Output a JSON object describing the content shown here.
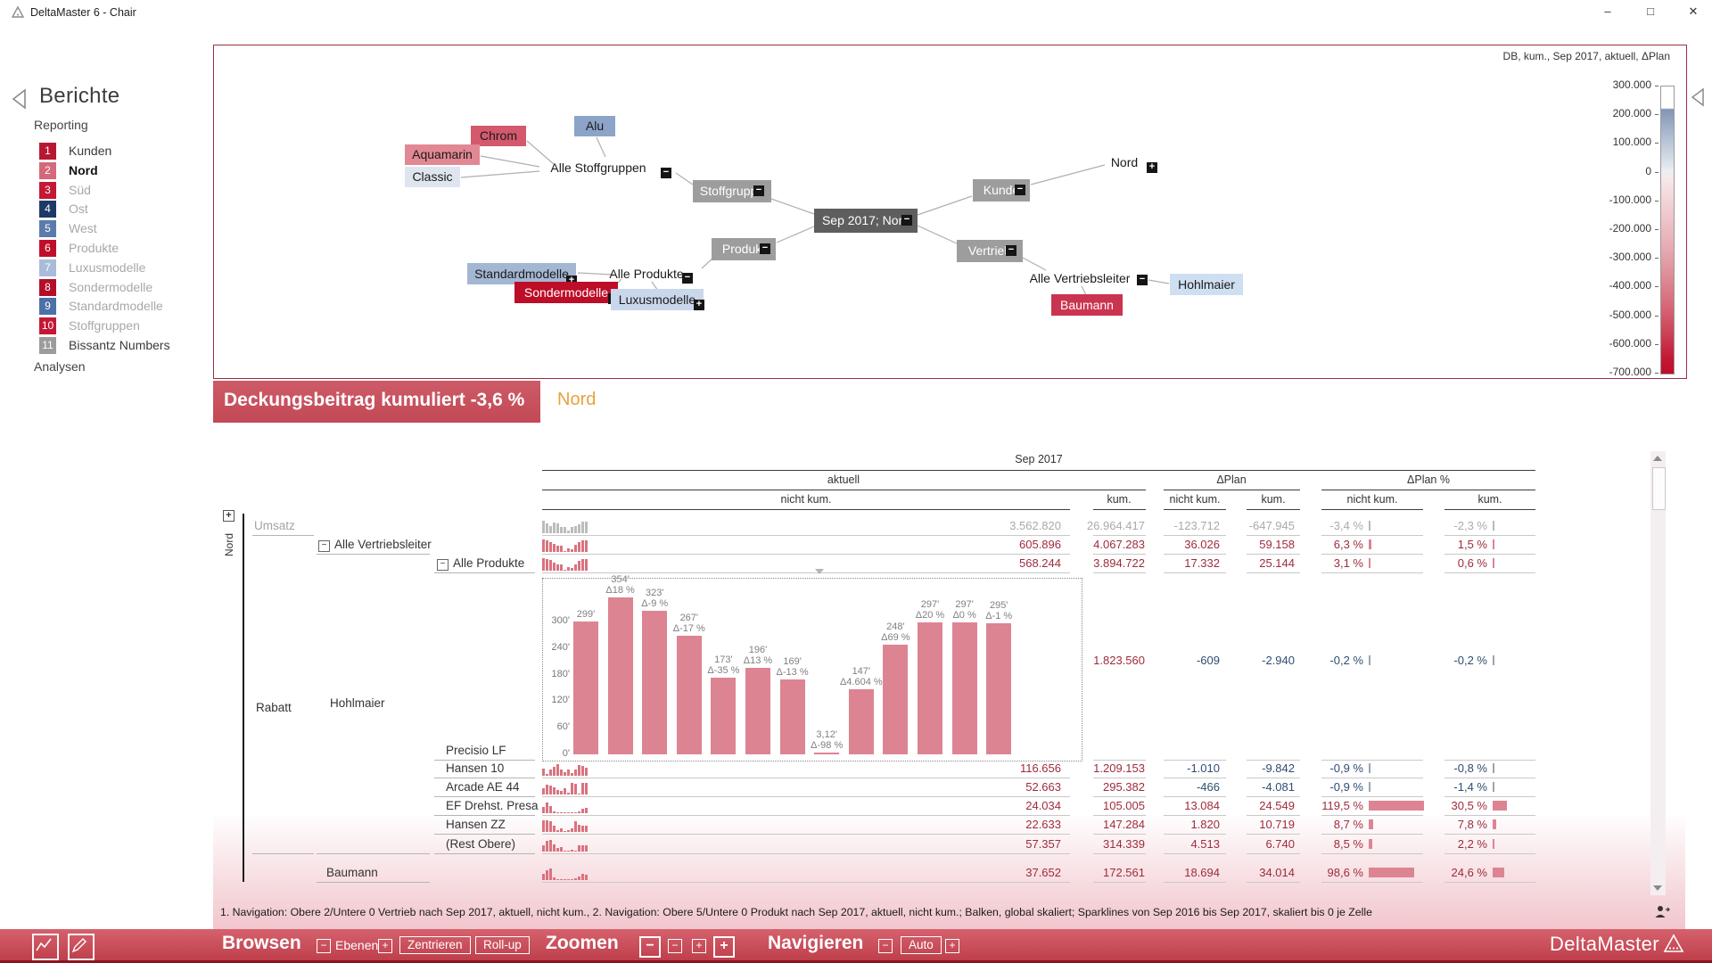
{
  "window": {
    "title": "DeltaMaster 6 - Chair"
  },
  "sidebar": {
    "back_label": "Berichte",
    "sections": [
      "Reporting",
      "Analysen"
    ],
    "items": [
      {
        "num": "1",
        "label": "Kunden",
        "color": "#b81734",
        "state": "dark"
      },
      {
        "num": "2",
        "label": "Nord",
        "color": "#d4697b",
        "state": "selected"
      },
      {
        "num": "3",
        "label": "Süd",
        "color": "#c41834",
        "state": "grey"
      },
      {
        "num": "4",
        "label": "Ost",
        "color": "#1d3a67",
        "state": "grey"
      },
      {
        "num": "5",
        "label": "West",
        "color": "#5b7cab",
        "state": "grey"
      },
      {
        "num": "6",
        "label": "Produkte",
        "color": "#c00e2a",
        "state": "grey"
      },
      {
        "num": "7",
        "label": "Luxusmodelle",
        "color": "#a9bcd8",
        "state": "grey"
      },
      {
        "num": "8",
        "label": "Sondermodelle",
        "color": "#b30f28",
        "state": "grey"
      },
      {
        "num": "9",
        "label": "Standardmodelle",
        "color": "#4c70a8",
        "state": "grey"
      },
      {
        "num": "10",
        "label": "Stoffgruppen",
        "color": "#c41834",
        "state": "grey"
      },
      {
        "num": "11",
        "label": "Bissantz Numbers",
        "color": "#9c9c9c",
        "state": "dark"
      }
    ]
  },
  "graph": {
    "context_label": "DB, kum., Sep 2017, aktuell, ΔPlan",
    "nodes": [
      {
        "label": "Alu",
        "expander": null
      },
      {
        "label": "Chrom",
        "expander": null
      },
      {
        "label": "Aquamarin",
        "expander": null
      },
      {
        "label": "Classic",
        "expander": null
      },
      {
        "label": "Alle Stoffgruppen",
        "expander": "minus"
      },
      {
        "label": "Stoffgruppe",
        "expander": "minus"
      },
      {
        "label": "Sep 2017; Nord",
        "expander": "minus"
      },
      {
        "label": "Produkt",
        "expander": "minus"
      },
      {
        "label": "Kunde",
        "expander": "minus"
      },
      {
        "label": "Vertrieb",
        "expander": "minus"
      },
      {
        "label": "Nord",
        "expander": "plus"
      },
      {
        "label": "Alle Vertriebsleiter",
        "expander": "minus"
      },
      {
        "label": "Hohlmaier",
        "expander": null
      },
      {
        "label": "Baumann",
        "expander": null
      },
      {
        "label": "Alle Produkte",
        "expander": "minus"
      },
      {
        "label": "Standardmodelle",
        "expander": "plus"
      },
      {
        "label": "Sondermodelle",
        "expander": "plus"
      },
      {
        "label": "Luxusmodelle",
        "expander": "plus"
      }
    ],
    "scale": {
      "ticks": [
        "300.000",
        "200.000",
        "100.000",
        "0",
        "-100.000",
        "-200.000",
        "-300.000",
        "-400.000",
        "-500.000",
        "-600.000",
        "-700.000"
      ]
    }
  },
  "banner": {
    "title": "Deckungsbeitrag kumuliert -3,6 %",
    "context": "Nord"
  },
  "table": {
    "period": "Sep 2017",
    "groups": [
      "aktuell",
      "ΔPlan",
      "ΔPlan %"
    ],
    "sub": [
      "nicht kum.",
      "kum.",
      "nicht kum.",
      "kum.",
      "nicht kum.",
      "kum."
    ],
    "dim": "Nord",
    "side_labels": [
      {
        "text": "Rabatt"
      },
      {
        "text": "Hohlmaier"
      }
    ],
    "rows": [
      {
        "label": "Umsatz",
        "tone": "muted",
        "expander": false,
        "spark": [
          0.95,
          0.75,
          0.55,
          0.8,
          0.75,
          0.5,
          0.45,
          0.2,
          0.5,
          0.55,
          0.7,
          0.85,
          0.9
        ],
        "values": [
          "3.562.820",
          "26.964.417",
          "-123.712",
          "-647.945",
          "-3,4 %",
          "-2,3 %"
        ]
      },
      {
        "label": "Alle Vertriebsleiter",
        "tone": "normal",
        "expander": true,
        "spark": [
          0.95,
          0.9,
          0.75,
          0.6,
          0.5,
          0.45,
          0.1,
          0.3,
          0.2,
          0.55,
          0.75,
          0.85,
          0.9
        ],
        "values": [
          "605.896",
          "4.067.283",
          "36.026",
          "59.158",
          "6,3 %",
          "1,5 %"
        ]
      },
      {
        "label": "Alle Produkte",
        "tone": "normal",
        "expander": true,
        "spark": [
          0.95,
          0.9,
          0.8,
          0.6,
          0.5,
          0.45,
          0.1,
          0.3,
          0.2,
          0.5,
          0.75,
          0.85,
          0.9
        ],
        "values": [
          "568.244",
          "3.894.722",
          "17.332",
          "25.144",
          "3,1 %",
          "0,6 %"
        ]
      },
      {
        "label": "Precisio LF",
        "tone": "normal",
        "expander": false,
        "chart": true,
        "values": [
          "294.901",
          "1.823.560",
          "-609",
          "-2.940",
          "-0,2 %",
          "-0,2 %"
        ]
      },
      {
        "label": "Hansen 10",
        "tone": "normal",
        "expander": false,
        "spark": [
          0.55,
          0.15,
          0.5,
          0.7,
          0.85,
          0.5,
          0.3,
          0.5,
          0.2,
          0.5,
          0.8,
          0.75,
          0.6
        ],
        "values": [
          "116.656",
          "1.209.153",
          "-1.010",
          "-9.842",
          "-0,9 %",
          "-0,8 %"
        ]
      },
      {
        "label": "Arcade AE 44",
        "tone": "normal",
        "expander": false,
        "spark": [
          0.45,
          0.75,
          0.7,
          0.55,
          0.35,
          0.25,
          0.45,
          0.15,
          0.85,
          0.8,
          0.05,
          0.9,
          0.85
        ],
        "values": [
          "52.663",
          "295.382",
          "-466",
          "-4.081",
          "-0,9 %",
          "-1,4 %"
        ]
      },
      {
        "label": "EF Drehst. Presa",
        "tone": "normal",
        "expander": false,
        "spark": [
          0.45,
          0.8,
          0.55,
          0.15,
          0.08,
          0.08,
          0.08,
          0.08,
          0.08,
          0.08,
          0.12,
          0.35,
          0.4
        ],
        "values": [
          "24.034",
          "105.005",
          "13.084",
          "24.549",
          "119,5 %",
          "30,5 %"
        ]
      },
      {
        "label": "Hansen ZZ",
        "tone": "normal",
        "expander": false,
        "spark": [
          0.9,
          0.85,
          0.8,
          0.5,
          0.12,
          0.3,
          0.08,
          0.12,
          0.3,
          0.8,
          0.55,
          0.5,
          0.45
        ],
        "values": [
          "22.633",
          "147.284",
          "1.820",
          "10.719",
          "8,7 %",
          "7,8 %"
        ]
      },
      {
        "label": "(Rest Obere)",
        "tone": "normal",
        "expander": false,
        "spark": [
          0.45,
          0.8,
          0.85,
          0.55,
          0.3,
          0.35,
          0.08,
          0.08,
          0.12,
          0.08,
          0.45,
          0.5,
          0.45
        ],
        "values": [
          "57.357",
          "314.339",
          "4.513",
          "6.740",
          "8,5 %",
          "2,2 %"
        ]
      },
      {
        "label": "Baumann",
        "tone": "normal",
        "expander": false,
        "spark": [
          0.45,
          0.75,
          0.85,
          0.18,
          0.08,
          0.08,
          0.08,
          0.08,
          0.08,
          0.12,
          0.3,
          0.45,
          0.4
        ],
        "values": [
          "37.652",
          "172.561",
          "18.694",
          "34.014",
          "98,6 %",
          "24,6 %"
        ]
      }
    ]
  },
  "chart": {
    "type": "bar",
    "y_ticks": [
      "0'",
      "60'",
      "120'",
      "180'",
      "240'",
      "300'"
    ],
    "bars": [
      {
        "v": 299,
        "top": "299'",
        "delta": ""
      },
      {
        "v": 354,
        "top": "354'",
        "delta": "Δ18 %"
      },
      {
        "v": 323,
        "top": "323'",
        "delta": "Δ-9 %"
      },
      {
        "v": 267,
        "top": "267'",
        "delta": "Δ-17 %"
      },
      {
        "v": 173,
        "top": "173'",
        "delta": "Δ-35 %"
      },
      {
        "v": 196,
        "top": "196'",
        "delta": "Δ13 %"
      },
      {
        "v": 169,
        "top": "169'",
        "delta": "Δ-13 %"
      },
      {
        "v": 3.12,
        "top": "3,12'",
        "delta": "Δ-98 %"
      },
      {
        "v": 147,
        "top": "147'",
        "delta": "Δ4.604 %"
      },
      {
        "v": 248,
        "top": "248'",
        "delta": "Δ69 %"
      },
      {
        "v": 297,
        "top": "297'",
        "delta": "Δ20 %"
      },
      {
        "v": 297,
        "top": "297'",
        "delta": "Δ0 %"
      },
      {
        "v": 295,
        "top": "295'",
        "delta": "Δ-1 %"
      }
    ]
  },
  "statusbar": {
    "text": "1. Navigation: Obere 2/Untere 0 Vertrieb nach Sep 2017, aktuell, nicht kum.,  2. Navigation: Obere 5/Untere 0 Produkt nach Sep 2017, aktuell, nicht kum.; Balken, global skaliert; Sparklines von Sep 2016 bis Sep 2017, skaliert bis 0 je Zelle"
  },
  "toolbar": {
    "browsen": "Browsen",
    "ebenen": "Ebenen",
    "zentrieren": "Zentrieren",
    "rollup": "Roll-up",
    "zoomen": "Zoomen",
    "navigieren": "Navigieren",
    "auto": "Auto",
    "brand": "DeltaMaster"
  },
  "colors": {
    "accent_red": "#c24955",
    "value_red": "#9e2b3c",
    "value_blue": "#2e4d72",
    "bar_pink": "#dd8493"
  }
}
